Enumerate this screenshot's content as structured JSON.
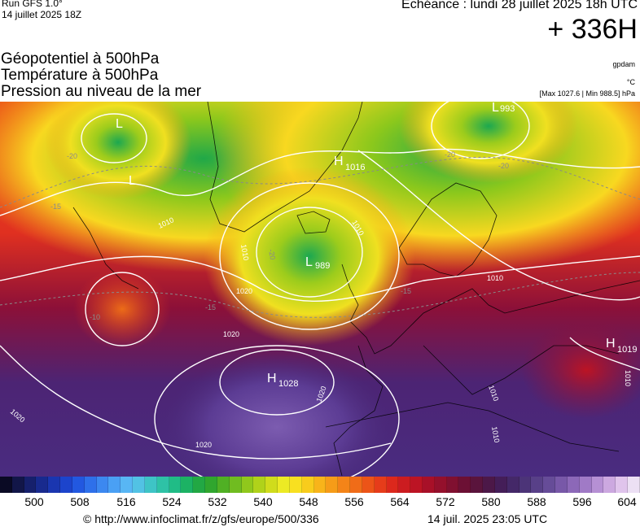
{
  "header": {
    "run": "Run GFS 1.0°",
    "run_time": "14 juillet 2025 18Z",
    "echeance": "Echéance : lundi 28 juillet 2025 18h UTC",
    "lead": "+ 336H",
    "variables": [
      "Géopotentiel à 500hPa",
      "Température à 500hPa",
      "Pression au niveau de la mer"
    ],
    "units": [
      "gpdam",
      "°C",
      "[Max 1027.6 | Min 988.5] hPa"
    ]
  },
  "map": {
    "pressure_centers": [
      {
        "type": "L",
        "value": "993"
      },
      {
        "type": "L",
        "value": ""
      },
      {
        "type": "L",
        "value": ""
      },
      {
        "type": "H",
        "value": "1016"
      },
      {
        "type": "L",
        "value": "989"
      },
      {
        "type": "H",
        "value": "1028"
      },
      {
        "type": "H",
        "value": "1019"
      }
    ],
    "isobar_labels": [
      "1010",
      "1010",
      "1010",
      "1020",
      "1020",
      "1020",
      "1020",
      "1020",
      "1010",
      "1010",
      "1010",
      "1010"
    ],
    "temp_labels": [
      "-20",
      "-20",
      "-20",
      "-20",
      "-15",
      "-15",
      "-15",
      "-10"
    ]
  },
  "colorbar": {
    "colors": [
      "#0a0a24",
      "#121648",
      "#16206c",
      "#182a8e",
      "#1a36b0",
      "#1c44cc",
      "#2258e0",
      "#2e70ea",
      "#3c88f0",
      "#4aa0f4",
      "#58b6f4",
      "#52c2e4",
      "#3ec4c6",
      "#2ec2a6",
      "#20bc86",
      "#1cb264",
      "#22a844",
      "#30a62e",
      "#50b024",
      "#70bc20",
      "#90c81c",
      "#b0d21a",
      "#d0dc1c",
      "#ecea24",
      "#f8e020",
      "#f8cc1c",
      "#f8b41a",
      "#f69c18",
      "#f48418",
      "#f06c18",
      "#ec5418",
      "#e63c1a",
      "#dc281c",
      "#cc1c20",
      "#bc1424",
      "#a81028",
      "#94102c",
      "#801030",
      "#6c1034",
      "#5a143c",
      "#4c1848",
      "#441e58",
      "#442868",
      "#4c3478",
      "#584088",
      "#664c98",
      "#7858a8",
      "#8c68b8",
      "#a07ac6",
      "#b690d4",
      "#cca8e0",
      "#e0c4ec",
      "#ece0f4"
    ],
    "ticks": [
      "500",
      "508",
      "516",
      "524",
      "532",
      "540",
      "548",
      "556",
      "564",
      "572",
      "580",
      "588",
      "596",
      "604"
    ]
  },
  "footer": {
    "url": "© http://www.infoclimat.fr/z/gfs/europe/500/336",
    "generated": "14 juil. 2025 23:05 UTC"
  }
}
